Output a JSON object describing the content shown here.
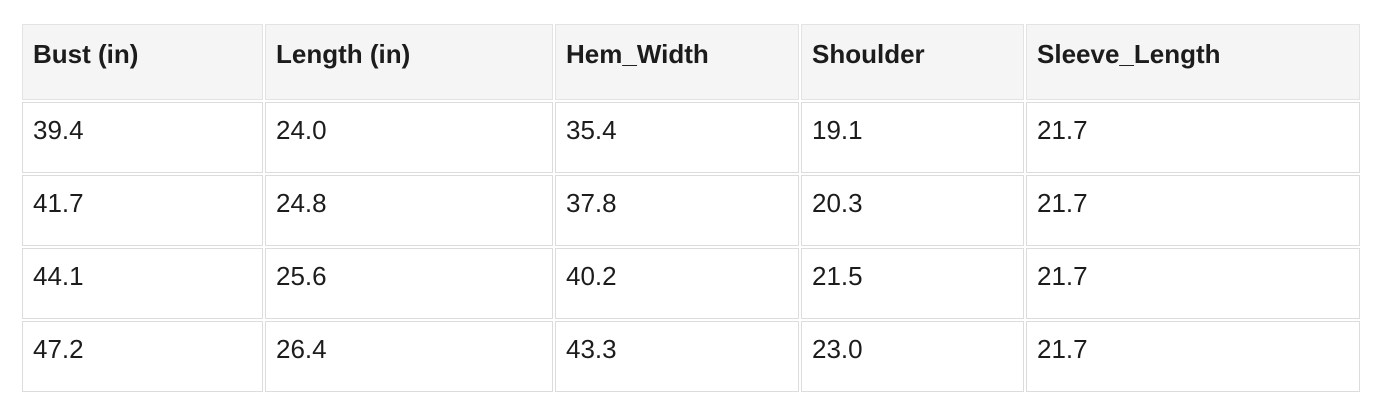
{
  "colors": {
    "page_background": "#ffffff",
    "header_background": "#f5f5f5",
    "cell_border": "#dcdcdc",
    "text": "#1c1c1c"
  },
  "table": {
    "columns": [
      "Bust (in)",
      "Length (in)",
      "Hem_Width",
      "Shoulder",
      "Sleeve_Length"
    ],
    "rows": [
      [
        "39.4",
        "24.0",
        "35.4",
        "19.1",
        "21.7"
      ],
      [
        "41.7",
        "24.8",
        "37.8",
        "20.3",
        "21.7"
      ],
      [
        "44.1",
        "25.6",
        "40.2",
        "21.5",
        "21.7"
      ],
      [
        "47.2",
        "26.4",
        "43.3",
        "23.0",
        "21.7"
      ]
    ]
  },
  "chart_data": {
    "type": "table",
    "columns": [
      "Bust (in)",
      "Length (in)",
      "Hem_Width",
      "Shoulder",
      "Sleeve_Length"
    ],
    "rows": [
      [
        39.4,
        24.0,
        35.4,
        19.1,
        21.7
      ],
      [
        41.7,
        24.8,
        37.8,
        20.3,
        21.7
      ],
      [
        44.1,
        25.6,
        40.2,
        21.5,
        21.7
      ],
      [
        47.2,
        26.4,
        43.3,
        23.0,
        21.7
      ]
    ],
    "title": "",
    "legend": false
  }
}
